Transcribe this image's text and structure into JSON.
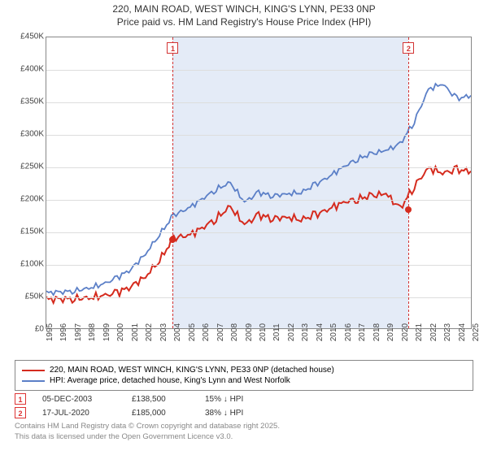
{
  "title": {
    "line1": "220, MAIN ROAD, WEST WINCH, KING'S LYNN, PE33 0NP",
    "line2": "Price paid vs. HM Land Registry's House Price Index (HPI)"
  },
  "chart": {
    "type": "line",
    "background_color": "#ffffff",
    "grid_color": "#dddddd",
    "border_color": "#888888",
    "band_color": "#e4ebf7",
    "ylim": [
      0,
      450000
    ],
    "ytick_step": 50000,
    "yticks": [
      "£0",
      "£50K",
      "£100K",
      "£150K",
      "£200K",
      "£250K",
      "£300K",
      "£350K",
      "£400K",
      "£450K"
    ],
    "x_years": [
      1995,
      1996,
      1997,
      1998,
      1999,
      2000,
      2001,
      2002,
      2003,
      2004,
      2005,
      2006,
      2007,
      2008,
      2009,
      2010,
      2011,
      2012,
      2013,
      2014,
      2015,
      2016,
      2017,
      2018,
      2019,
      2020,
      2021,
      2022,
      2023,
      2024,
      2025
    ],
    "series": [
      {
        "name": "220, MAIN ROAD, WEST WINCH, KING'S LYNN, PE33 0NP (detached house)",
        "color": "#d52b1e",
        "line_width": 2,
        "values": [
          45000,
          45000,
          46000,
          47000,
          50000,
          55000,
          65000,
          80000,
          105000,
          140000,
          143000,
          155000,
          170000,
          188000,
          160000,
          175000,
          170000,
          172000,
          168000,
          175000,
          185000,
          195000,
          200000,
          205000,
          208000,
          185000,
          220000,
          248000,
          240000,
          245000,
          243000
        ]
      },
      {
        "name": "HPI: Average price, detached house, King's Lynn and West Norfolk",
        "color": "#5b7fc7",
        "line_width": 1.8,
        "values": [
          55000,
          56000,
          58000,
          62000,
          68000,
          78000,
          92000,
          115000,
          145000,
          175000,
          185000,
          200000,
          215000,
          225000,
          195000,
          210000,
          205000,
          208000,
          210000,
          222000,
          235000,
          250000,
          262000,
          270000,
          275000,
          285000,
          320000,
          370000,
          378000,
          355000,
          360000
        ]
      }
    ],
    "sale_markers": [
      {
        "idx": "1",
        "year": 2003.9,
        "value": 138500
      },
      {
        "idx": "2",
        "year": 2020.5,
        "value": 185000
      }
    ],
    "marker_color": "#d33333",
    "title_fontsize": 12,
    "tick_fontsize": 10
  },
  "legend": {
    "row1": "220, MAIN ROAD, WEST WINCH, KING'S LYNN, PE33 0NP (detached house)",
    "row2": "HPI: Average price, detached house, King's Lynn and West Norfolk"
  },
  "sales": [
    {
      "idx": "1",
      "date": "05-DEC-2003",
      "price": "£138,500",
      "diff": "15% ↓ HPI"
    },
    {
      "idx": "2",
      "date": "17-JUL-2020",
      "price": "£185,000",
      "diff": "38% ↓ HPI"
    }
  ],
  "footer": {
    "line1": "Contains HM Land Registry data © Crown copyright and database right 2025.",
    "line2": "This data is licensed under the Open Government Licence v3.0."
  }
}
